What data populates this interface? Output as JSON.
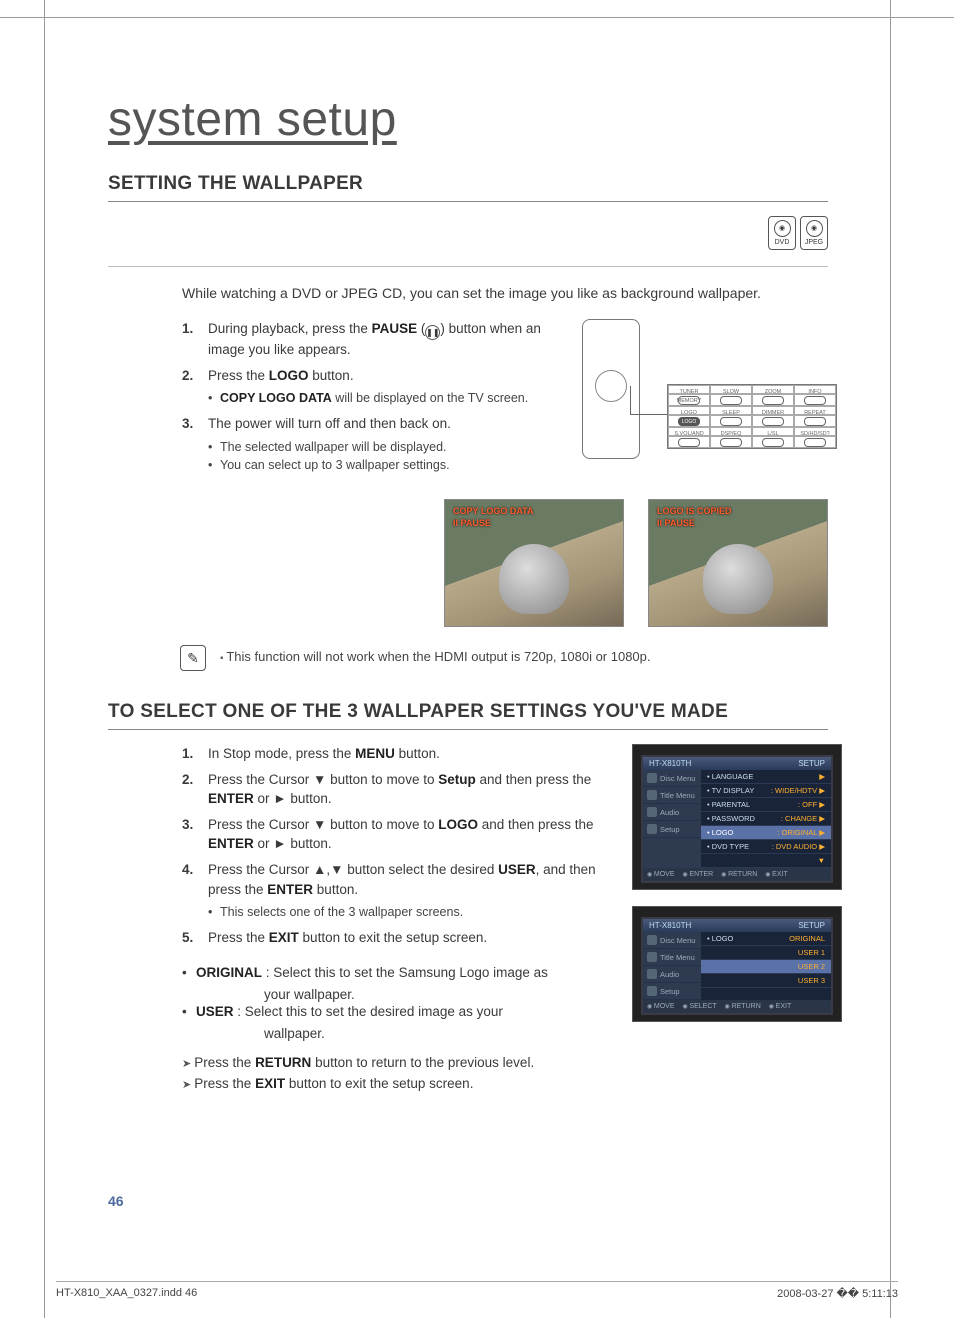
{
  "page": {
    "main_title": "system setup",
    "page_number": "46",
    "footer_left": "HT-X810_XAA_0327.indd   46",
    "footer_right": "2008-03-27   �� 5:11:13"
  },
  "icons": {
    "dvd_label": "DVD",
    "jpeg_label": "JPEG"
  },
  "sec1": {
    "heading": "SETTING THE WALLPAPER",
    "intro": "While watching a DVD or JPEG CD, you can set the image you like as background wallpaper.",
    "steps": [
      {
        "n": "1.",
        "pre": "During playback, press the ",
        "bold": "PAUSE",
        "post": " (",
        "post2": ") button when an image you like appears."
      },
      {
        "n": "2.",
        "pre": "Press the ",
        "bold": "LOGO",
        "post": " button.",
        "subs": [
          {
            "pre": "",
            "bold": "COPY LOGO DATA",
            "post": " will be displayed on the TV screen."
          }
        ]
      },
      {
        "n": "3.",
        "pre": "The power will turn off and then back on.",
        "bold": "",
        "post": "",
        "subs": [
          {
            "pre": "The selected wallpaper will be displayed.",
            "bold": "",
            "post": ""
          },
          {
            "pre": "You can select up to 3 wallpaper settings.",
            "bold": "",
            "post": ""
          }
        ]
      }
    ],
    "remote_labels": {
      "row1": [
        "TUNER MEMORY",
        "SLOW",
        "ZOOM",
        "INFO"
      ],
      "row2": [
        "MO/ST",
        "MO/ST",
        "",
        ""
      ],
      "row3": [
        "LOGO",
        "SLEEP",
        "DIMMER",
        "REPEAT"
      ],
      "row4": [
        "S.VOL/AND",
        "DSP/EQ",
        "L/SL",
        "SD/HD/SD?"
      ],
      "row5": [
        "",
        "",
        "",
        "CANCEL"
      ]
    },
    "thumb1": {
      "line1": "COPY LOGO DATA",
      "line2": "II PAUSE"
    },
    "thumb2": {
      "line1": "LOGO IS COPIED",
      "line2": "II PAUSE"
    },
    "note": "This function will not work when the HDMI output is 720p, 1080i or 1080p."
  },
  "sec2": {
    "heading": "TO SELECT ONE OF THE 3 WALLPAPER SETTINGS YOU'VE MADE",
    "steps": [
      {
        "n": "1.",
        "html": "In Stop mode, press the <b>MENU</b> button."
      },
      {
        "n": "2.",
        "html": "Press the Cursor ▼ button to move to <b>Setup</b> and then press the <b>ENTER</b> or ► button."
      },
      {
        "n": "3.",
        "html": "Press the Cursor ▼ button to move to <b>LOGO</b> and then press the <b>ENTER</b> or ► button."
      },
      {
        "n": "4.",
        "html": "Press the Cursor ▲,▼ button select the desired <b>USER</b>, and then press the <b>ENTER</b> button.",
        "subs": [
          "This selects one of the 3 wallpaper screens."
        ]
      },
      {
        "n": "5.",
        "html": "Press the <b>EXIT</b> button to exit the setup screen."
      }
    ],
    "defs": [
      {
        "term": "ORIGINAL",
        "desc": ": Select this to set the Samsung Logo image as",
        "cont": "your wallpaper."
      },
      {
        "term": "USER",
        "desc": ": Select this to set the desired image as your",
        "cont": "wallpaper."
      }
    ],
    "arrows": [
      "Press the <b>RETURN</b> button to return to the previous level.",
      "Press the <b>EXIT</b> button to exit the setup screen."
    ],
    "osd1": {
      "title_left": "HT-X810TH",
      "title_right": "SETUP",
      "side": [
        "Disc Menu",
        "Title Menu",
        "Audio",
        "Setup"
      ],
      "rows": [
        {
          "l": "• LANGUAGE",
          "r": "▶"
        },
        {
          "l": "• TV DISPLAY",
          "r": ": WIDE/HDTV ▶"
        },
        {
          "l": "• PARENTAL",
          "r": ": OFF ▶"
        },
        {
          "l": "• PASSWORD",
          "r": ": CHANGE ▶"
        },
        {
          "l": "• LOGO",
          "r": ": ORIGINAL ▶",
          "sel": true
        },
        {
          "l": "• DVD TYPE",
          "r": ": DVD AUDIO ▶"
        },
        {
          "l": "",
          "r": "▼"
        }
      ],
      "foot": [
        "MOVE",
        "ENTER",
        "RETURN",
        "EXIT"
      ]
    },
    "osd2": {
      "title_left": "HT-X810TH",
      "title_right": "SETUP",
      "side": [
        "Disc Menu",
        "Title Menu",
        "Audio",
        "Setup"
      ],
      "rows": [
        {
          "l": "• LOGO",
          "r": "ORIGINAL"
        },
        {
          "l": "",
          "r": "USER 1"
        },
        {
          "l": "",
          "r": "USER 2",
          "sel": true
        },
        {
          "l": "",
          "r": "USER 3"
        }
      ],
      "foot": [
        "MOVE",
        "SELECT",
        "RETURN",
        "EXIT"
      ]
    }
  },
  "colors": {
    "heading": "#3a3a3a",
    "accent_pagenum": "#4a6aa0",
    "osd_orange": "#ff5a2a"
  }
}
